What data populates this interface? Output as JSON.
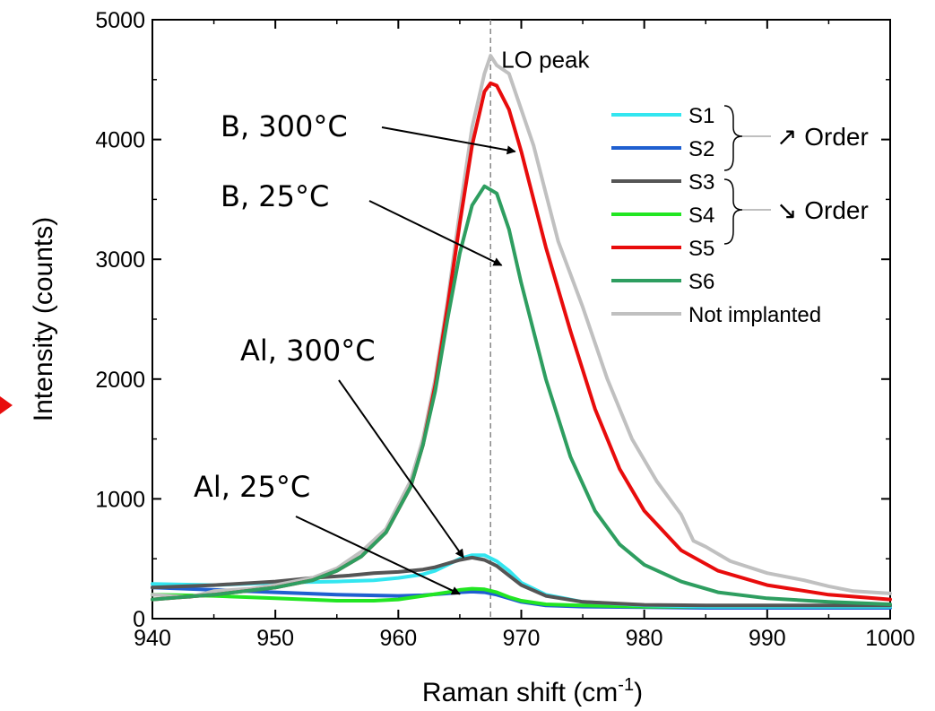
{
  "chart_data": {
    "type": "line",
    "xlabel": "Raman shift (cm",
    "xlabel_sup": "-1",
    "xlabel_end": ")",
    "ylabel": "Intensity (counts)",
    "xlim": [
      940,
      1000
    ],
    "ylim": [
      0,
      5000
    ],
    "xticks": [
      "940",
      "950",
      "960",
      "970",
      "980",
      "990",
      "1000"
    ],
    "yticks": [
      "0",
      "1000",
      "2000",
      "3000",
      "4000",
      "5000"
    ],
    "grid": false,
    "legend_position": "top-right",
    "reference_line_x": 967.5,
    "reference_line_label": "LO peak",
    "order_up_label": "↗ Order",
    "order_down_label": "↘ Order",
    "annotations": [
      {
        "text": "B, 300°C",
        "target": [
          969.5,
          3900
        ]
      },
      {
        "text": "B, 25°C",
        "target": [
          968.4,
          2950
        ]
      },
      {
        "text": "Al, 300°C",
        "target": [
          965.3,
          510
        ]
      },
      {
        "text": "Al, 25°C",
        "target": [
          965.0,
          205
        ]
      }
    ],
    "series": [
      {
        "name": "S1",
        "color": "#33e6f0",
        "x": [
          940,
          945,
          950,
          955,
          958,
          960,
          962,
          963,
          964,
          965,
          966,
          967,
          968,
          969,
          970,
          972,
          975,
          980,
          985,
          990,
          995,
          1000
        ],
        "y": [
          290,
          280,
          300,
          310,
          320,
          340,
          370,
          400,
          450,
          500,
          530,
          530,
          480,
          400,
          300,
          200,
          140,
          110,
          100,
          100,
          100,
          100
        ]
      },
      {
        "name": "S2",
        "color": "#1f5fd0",
        "x": [
          940,
          945,
          950,
          955,
          960,
          962,
          964,
          965,
          966,
          967,
          968,
          969,
          970,
          972,
          975,
          980,
          985,
          990,
          995,
          1000
        ],
        "y": [
          260,
          240,
          220,
          200,
          190,
          195,
          210,
          220,
          225,
          220,
          200,
          170,
          140,
          110,
          100,
          95,
          90,
          90,
          90,
          90
        ]
      },
      {
        "name": "S3",
        "color": "#555555",
        "x": [
          940,
          945,
          950,
          953,
          956,
          958,
          960,
          962,
          963,
          964,
          965,
          966,
          967,
          968,
          969,
          970,
          972,
          975,
          980,
          985,
          990,
          995,
          1000
        ],
        "y": [
          260,
          280,
          310,
          340,
          360,
          380,
          390,
          410,
          430,
          460,
          490,
          510,
          490,
          440,
          360,
          280,
          190,
          140,
          115,
          110,
          110,
          110,
          110
        ]
      },
      {
        "name": "S4",
        "color": "#22e622",
        "x": [
          940,
          945,
          950,
          955,
          958,
          960,
          962,
          964,
          965,
          966,
          967,
          968,
          969,
          970,
          972,
          975,
          980,
          985,
          990,
          995,
          1000
        ],
        "y": [
          200,
          190,
          170,
          150,
          150,
          160,
          190,
          220,
          240,
          250,
          245,
          220,
          180,
          150,
          120,
          110,
          100,
          100,
          100,
          100,
          100
        ]
      },
      {
        "name": "S5",
        "color": "#e80c0c",
        "x": [
          940,
          945,
          950,
          953,
          955,
          957,
          959,
          961,
          962,
          963,
          964,
          965,
          966,
          967,
          967.5,
          968,
          969,
          970,
          972,
          974,
          976,
          978,
          980,
          983,
          986,
          990,
          995,
          1000
        ],
        "y": [
          160,
          200,
          260,
          320,
          400,
          520,
          720,
          1100,
          1450,
          1950,
          2600,
          3300,
          3950,
          4400,
          4470,
          4450,
          4250,
          3900,
          3100,
          2400,
          1750,
          1250,
          900,
          570,
          400,
          280,
          200,
          160
        ]
      },
      {
        "name": "S6",
        "color": "#2e9e60",
        "x": [
          940,
          945,
          950,
          953,
          955,
          957,
          959,
          961,
          962,
          963,
          964,
          965,
          966,
          967,
          968,
          969,
          970,
          972,
          974,
          976,
          978,
          980,
          983,
          986,
          990,
          995,
          1000
        ],
        "y": [
          160,
          200,
          260,
          320,
          400,
          520,
          720,
          1100,
          1450,
          1900,
          2500,
          3050,
          3450,
          3610,
          3550,
          3250,
          2800,
          2000,
          1350,
          900,
          620,
          450,
          310,
          220,
          170,
          140,
          120
        ]
      },
      {
        "name": "Not implanted",
        "color": "#c0c0c0",
        "x": [
          940,
          943,
          945,
          948,
          950,
          953,
          955,
          957,
          959,
          961,
          962,
          963,
          964,
          965,
          966,
          967,
          967.5,
          968,
          969,
          970,
          971,
          972,
          973,
          975,
          977,
          979,
          981,
          983,
          984,
          985,
          987,
          990,
          993,
          995,
          997,
          1000
        ],
        "y": [
          200,
          180,
          230,
          250,
          280,
          340,
          420,
          560,
          750,
          1150,
          1500,
          2000,
          2650,
          3400,
          4100,
          4550,
          4700,
          4620,
          4550,
          4250,
          3950,
          3550,
          3150,
          2600,
          2000,
          1500,
          1150,
          870,
          650,
          600,
          480,
          380,
          320,
          270,
          230,
          210
        ]
      }
    ]
  }
}
